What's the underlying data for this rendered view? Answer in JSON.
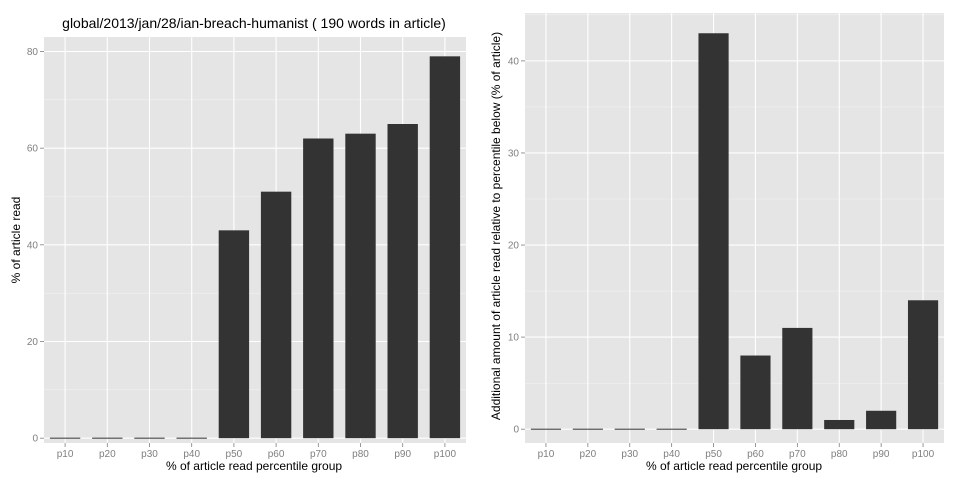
{
  "colors": {
    "panel_background": "#e5e5e5",
    "grid_major": "#ffffff",
    "grid_minor": "#f2f2f2",
    "bar_fill": "#333333",
    "tick_text": "#7f7f7f"
  },
  "chart_data": [
    {
      "type": "bar",
      "title": "global/2013/jan/28/ian-breach-humanist ( 190 words in article)",
      "xlabel": "% of article read percentile group",
      "ylabel": "% of article read",
      "categories": [
        "p10",
        "p20",
        "p30",
        "p40",
        "p50",
        "p60",
        "p70",
        "p80",
        "p90",
        "p100"
      ],
      "values": [
        0,
        0,
        0,
        0,
        43,
        51,
        62,
        63,
        65,
        79
      ],
      "ylim": [
        -1,
        83
      ],
      "yticks": [
        0,
        20,
        40,
        60,
        80
      ],
      "grid": true,
      "legend": "none"
    },
    {
      "type": "bar",
      "title": "",
      "xlabel": "% of article read percentile group",
      "ylabel": "Additional amount of article read relative to percentile below (% of article)",
      "categories": [
        "p10",
        "p20",
        "p30",
        "p40",
        "p50",
        "p60",
        "p70",
        "p80",
        "p90",
        "p100"
      ],
      "values": [
        0,
        0,
        0,
        0,
        43,
        8,
        11,
        1,
        2,
        14
      ],
      "ylim": [
        -1.5,
        45.2
      ],
      "yticks": [
        0,
        10,
        20,
        30,
        40
      ],
      "grid": true,
      "legend": "none"
    }
  ]
}
